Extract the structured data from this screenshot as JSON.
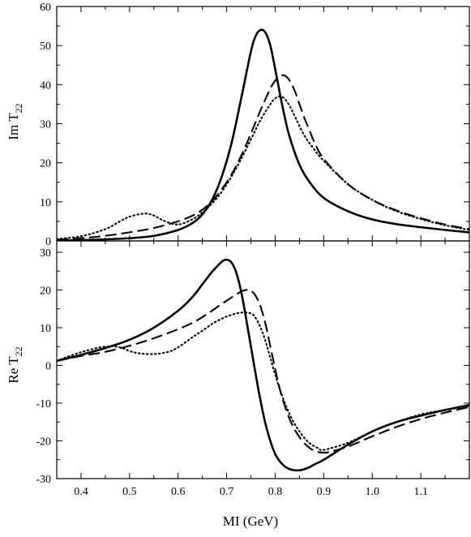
{
  "chart_data": [
    {
      "type": "line",
      "panel": "top",
      "ylabel_main": "Im T",
      "ylabel_sub": "22",
      "xlim": [
        0.35,
        1.2
      ],
      "ylim": [
        0,
        60
      ],
      "yticks": [
        0,
        10,
        20,
        30,
        40,
        50,
        60
      ],
      "ytick_labels": [
        "0",
        "10",
        "20",
        "30",
        "40",
        "50",
        "60"
      ],
      "series": [
        {
          "style": "solid",
          "x": [
            0.35,
            0.4,
            0.45,
            0.5,
            0.55,
            0.6,
            0.63,
            0.65,
            0.67,
            0.69,
            0.71,
            0.73,
            0.75,
            0.76,
            0.77,
            0.78,
            0.79,
            0.8,
            0.81,
            0.82,
            0.83,
            0.85,
            0.87,
            0.9,
            0.95,
            1.0,
            1.05,
            1.1,
            1.15,
            1.2
          ],
          "y": [
            0.1,
            0.2,
            0.4,
            0.7,
            1.3,
            2.8,
            4.6,
            6.8,
            10.5,
            16.5,
            25.0,
            36.5,
            48.5,
            52.5,
            54.0,
            53.3,
            50.0,
            44.0,
            37.5,
            31.5,
            26.5,
            19.5,
            15.2,
            11.0,
            7.6,
            5.5,
            4.3,
            3.5,
            2.8,
            2.2
          ]
        },
        {
          "style": "dashed",
          "x": [
            0.35,
            0.4,
            0.45,
            0.5,
            0.55,
            0.6,
            0.63,
            0.65,
            0.67,
            0.69,
            0.71,
            0.73,
            0.75,
            0.77,
            0.79,
            0.8,
            0.81,
            0.82,
            0.83,
            0.84,
            0.85,
            0.86,
            0.87,
            0.88,
            0.9,
            0.95,
            1.0,
            1.05,
            1.1,
            1.15,
            1.2
          ],
          "y": [
            0.3,
            0.7,
            1.3,
            2.2,
            3.3,
            5.0,
            6.5,
            8.0,
            10.2,
            13.2,
            17.0,
            21.8,
            27.5,
            33.5,
            39.0,
            41.0,
            42.2,
            42.3,
            41.0,
            38.5,
            35.0,
            31.5,
            28.5,
            25.5,
            21.0,
            14.5,
            10.5,
            7.8,
            5.8,
            4.2,
            3.0
          ]
        },
        {
          "style": "dotted",
          "x": [
            0.35,
            0.4,
            0.45,
            0.48,
            0.5,
            0.53,
            0.55,
            0.57,
            0.6,
            0.63,
            0.65,
            0.67,
            0.69,
            0.71,
            0.73,
            0.75,
            0.77,
            0.79,
            0.8,
            0.81,
            0.82,
            0.83,
            0.84,
            0.86,
            0.88,
            0.9,
            0.95,
            1.0,
            1.05,
            1.1,
            1.15,
            1.2
          ],
          "y": [
            0.5,
            1.2,
            3.0,
            5.0,
            6.2,
            7.0,
            6.5,
            5.2,
            4.2,
            5.6,
            7.3,
            9.6,
            12.6,
            16.5,
            21.0,
            26.0,
            31.0,
            35.0,
            36.5,
            37.0,
            36.3,
            34.5,
            32.0,
            27.0,
            23.5,
            20.5,
            14.5,
            10.5,
            7.6,
            5.6,
            4.0,
            2.8
          ]
        }
      ]
    },
    {
      "type": "line",
      "panel": "bottom",
      "ylabel_main": "Re T",
      "ylabel_sub": "22",
      "xlabel": "MI (GeV)",
      "xlim": [
        0.35,
        1.2
      ],
      "ylim": [
        -30,
        33
      ],
      "yticks": [
        -30,
        -20,
        -10,
        0,
        10,
        20,
        30
      ],
      "ytick_labels": [
        "-30",
        "-20",
        "-10",
        "0",
        "10",
        "20",
        "30"
      ],
      "xticks": [
        0.4,
        0.5,
        0.6,
        0.7,
        0.8,
        0.9,
        1.0,
        1.1
      ],
      "xtick_labels": [
        "0.4",
        "0.5",
        "0.6",
        "0.7",
        "0.8",
        "0.9",
        "1.0",
        "1.1"
      ],
      "series": [
        {
          "style": "solid",
          "x": [
            0.35,
            0.4,
            0.45,
            0.5,
            0.55,
            0.6,
            0.63,
            0.65,
            0.67,
            0.69,
            0.7,
            0.71,
            0.72,
            0.73,
            0.74,
            0.75,
            0.76,
            0.77,
            0.78,
            0.79,
            0.8,
            0.81,
            0.82,
            0.83,
            0.84,
            0.85,
            0.86,
            0.87,
            0.88,
            0.9,
            0.95,
            1.0,
            1.05,
            1.1,
            1.15,
            1.2
          ],
          "y": [
            1.2,
            2.8,
            4.6,
            6.8,
            10.0,
            14.5,
            18.2,
            21.5,
            24.8,
            27.5,
            28.0,
            27.3,
            24.5,
            19.5,
            12.5,
            5.0,
            -2.5,
            -9.5,
            -15.5,
            -20.0,
            -23.5,
            -25.5,
            -26.8,
            -27.5,
            -27.8,
            -27.8,
            -27.5,
            -27.0,
            -26.3,
            -25.0,
            -21.0,
            -17.5,
            -15.0,
            -13.3,
            -11.8,
            -10.5
          ]
        },
        {
          "style": "dashed",
          "x": [
            0.35,
            0.4,
            0.45,
            0.5,
            0.55,
            0.6,
            0.63,
            0.65,
            0.67,
            0.69,
            0.71,
            0.73,
            0.74,
            0.75,
            0.76,
            0.77,
            0.78,
            0.79,
            0.8,
            0.81,
            0.82,
            0.83,
            0.84,
            0.85,
            0.86,
            0.87,
            0.88,
            0.89,
            0.9,
            0.91,
            0.95,
            1.0,
            1.05,
            1.1,
            1.15,
            1.2
          ],
          "y": [
            1.2,
            2.5,
            3.6,
            5.2,
            7.2,
            9.6,
            11.3,
            12.8,
            14.5,
            16.3,
            18.0,
            19.6,
            20.0,
            19.8,
            18.4,
            15.5,
            11.0,
            5.0,
            -1.0,
            -6.5,
            -10.8,
            -14.3,
            -17.0,
            -19.0,
            -20.6,
            -21.8,
            -22.6,
            -23.0,
            -23.1,
            -23.0,
            -21.5,
            -18.8,
            -16.3,
            -14.2,
            -12.5,
            -11.0
          ]
        },
        {
          "style": "dotted",
          "x": [
            0.35,
            0.4,
            0.45,
            0.48,
            0.5,
            0.52,
            0.55,
            0.58,
            0.6,
            0.63,
            0.65,
            0.67,
            0.69,
            0.71,
            0.73,
            0.75,
            0.76,
            0.77,
            0.78,
            0.79,
            0.8,
            0.81,
            0.82,
            0.83,
            0.84,
            0.85,
            0.86,
            0.87,
            0.88,
            0.89,
            0.9,
            0.95,
            1.0,
            1.05,
            1.1,
            1.15,
            1.2
          ],
          "y": [
            1.2,
            3.5,
            5.0,
            4.8,
            3.8,
            3.2,
            3.0,
            3.6,
            4.8,
            7.5,
            9.2,
            11.0,
            12.4,
            13.4,
            14.0,
            13.8,
            12.5,
            10.0,
            6.5,
            2.0,
            -2.5,
            -6.5,
            -10.0,
            -13.0,
            -15.5,
            -17.5,
            -19.2,
            -20.5,
            -21.4,
            -22.0,
            -22.4,
            -20.5,
            -17.5,
            -15.0,
            -13.0,
            -11.8,
            -10.8
          ]
        }
      ]
    }
  ]
}
